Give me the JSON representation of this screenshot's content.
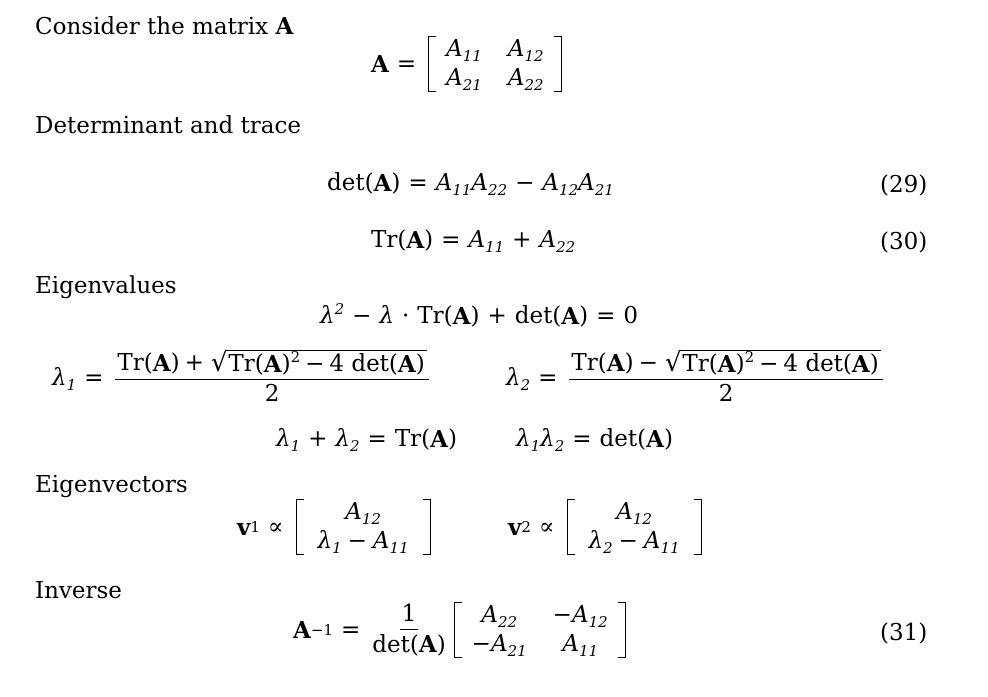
{
  "sections": {
    "intro": "Consider the matrix",
    "intro_symbol": "A",
    "det_trace": "Determinant and trace",
    "eigenvalues": "Eigenvalues",
    "eigenvectors": "Eigenvectors",
    "inverse": "Inverse"
  },
  "equation_numbers": {
    "det": "(29)",
    "trace": "(30)",
    "inverse": "(31)"
  }
}
